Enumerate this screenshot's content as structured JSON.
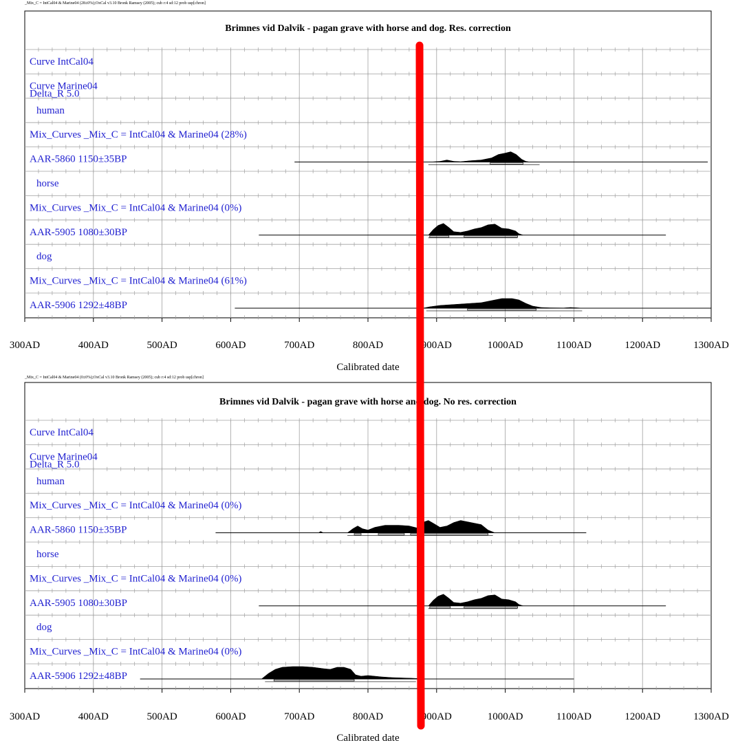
{
  "colors": {
    "label": "#1f1fd0",
    "grid": "#a0a0a0",
    "distribution": "#000000",
    "marker": "#ff0000"
  },
  "x_tick_labels": [
    "300AD",
    "400AD",
    "500AD",
    "600AD",
    "700AD",
    "800AD",
    "900AD",
    "1000AD",
    "1100AD",
    "1200AD",
    "1300AD"
  ],
  "xlabel": "Calibrated date",
  "chart_data": [
    {
      "type": "area",
      "meta": "_Mix_C = IntCal04 & Marine04 (28±0%);OxCal v3.10 Bronk Ramsey (2005); cub r:4 sd:12 prob usp[chron]",
      "title": "Brimnes vid Dalvik - pagan grave with horse and dog. Res. correction",
      "xlabel": "Calibrated date",
      "xlim": [
        300,
        1300
      ],
      "rows": [
        {
          "label": "Curve IntCal04"
        },
        {
          "label": "Curve Marine04",
          "sublabel": "Delta_R 5.0"
        },
        {
          "label": "human"
        },
        {
          "label": "Mix_Curves _Mix_C = IntCal04 & Marine04 (28%)"
        },
        {
          "label": "AAR-5860  1150±35BP",
          "range": [
            693,
            1295
          ],
          "dist": [
            [
              890,
              0
            ],
            [
              905,
              1
            ],
            [
              915,
              3
            ],
            [
              925,
              1
            ],
            [
              935,
              0.5
            ],
            [
              950,
              2
            ],
            [
              965,
              3
            ],
            [
              980,
              6
            ],
            [
              990,
              11
            ],
            [
              1000,
              13
            ],
            [
              1008,
              15
            ],
            [
              1016,
              11
            ],
            [
              1024,
              4
            ],
            [
              1030,
              1
            ],
            [
              1036,
              0
            ]
          ],
          "hpd68": [
            [
              978,
              1026
            ]
          ],
          "hpd95": [
            [
              888,
              1050
            ]
          ]
        },
        {
          "label": "horse"
        },
        {
          "label": "Mix_Curves _Mix_C = IntCal04 & Marine04 (0%)"
        },
        {
          "label": "AAR-5905  1080±30BP",
          "range": [
            641,
            1234
          ],
          "dist": [
            [
              888,
              0
            ],
            [
              895,
              8
            ],
            [
              902,
              14
            ],
            [
              910,
              17
            ],
            [
              918,
              11
            ],
            [
              925,
              5
            ],
            [
              935,
              4
            ],
            [
              945,
              6
            ],
            [
              955,
              9
            ],
            [
              965,
              11
            ],
            [
              975,
              15
            ],
            [
              985,
              16
            ],
            [
              995,
              10
            ],
            [
              1005,
              9
            ],
            [
              1015,
              6
            ],
            [
              1020,
              2
            ],
            [
              1026,
              0
            ]
          ],
          "hpd68": [
            [
              890,
              918
            ],
            [
              940,
              1018
            ]
          ],
          "hpd95": [
            [
              888,
              1018
            ]
          ]
        },
        {
          "label": "dog"
        },
        {
          "label": "Mix_Curves _Mix_C = IntCal04 & Marine04 (61%)"
        },
        {
          "label": "AAR-5906  1292±48BP",
          "range": [
            606,
            1300
          ],
          "dist": [
            [
              880,
              0
            ],
            [
              890,
              2
            ],
            [
              905,
              4
            ],
            [
              920,
              5
            ],
            [
              935,
              6
            ],
            [
              950,
              7
            ],
            [
              965,
              8
            ],
            [
              980,
              11
            ],
            [
              995,
              14
            ],
            [
              1010,
              14
            ],
            [
              1020,
              12
            ],
            [
              1030,
              7
            ],
            [
              1040,
              3
            ],
            [
              1052,
              1
            ],
            [
              1065,
              0.5
            ],
            [
              1085,
              0.3
            ],
            [
              1095,
              1
            ],
            [
              1105,
              0.5
            ],
            [
              1112,
              0
            ]
          ],
          "hpd68": [
            [
              945,
              1045
            ]
          ],
          "hpd95": [
            [
              885,
              1112
            ]
          ]
        }
      ]
    },
    {
      "type": "area",
      "meta": "_Mix_C = IntCal04 & Marine04 (0±0%);OxCal v3.10 Bronk Ramsey (2005); cub r:4 sd:12 prob usp[chron]",
      "title": "Brimnes vid Dalvik - pagan grave with horse and dog. No res. correction",
      "xlabel": "Calibrated date",
      "xlim": [
        300,
        1300
      ],
      "rows": [
        {
          "label": "Curve IntCal04"
        },
        {
          "label": "Curve Marine04",
          "sublabel": "Delta_R 5.0"
        },
        {
          "label": "human"
        },
        {
          "label": "Mix_Curves _Mix_C = IntCal04 & Marine04 (0%)"
        },
        {
          "label": "AAR-5860  1150±35BP",
          "range": [
            578,
            1118
          ],
          "dist": [
            [
              728,
              0
            ],
            [
              731,
              2
            ],
            [
              735,
              0
            ],
            [
              770,
              0
            ],
            [
              778,
              6
            ],
            [
              785,
              10
            ],
            [
              792,
              6
            ],
            [
              800,
              4
            ],
            [
              810,
              8
            ],
            [
              825,
              11
            ],
            [
              845,
              11
            ],
            [
              860,
              10
            ],
            [
              872,
              7
            ],
            [
              882,
              16
            ],
            [
              888,
              18
            ],
            [
              895,
              14
            ],
            [
              905,
              8
            ],
            [
              915,
              10
            ],
            [
              925,
              15
            ],
            [
              935,
              18
            ],
            [
              945,
              16
            ],
            [
              955,
              14
            ],
            [
              965,
              12
            ],
            [
              975,
              4
            ],
            [
              985,
              0
            ]
          ],
          "hpd68": [
            [
              780,
              790
            ],
            [
              815,
              853
            ],
            [
              862,
              975
            ]
          ],
          "hpd95": [
            [
              770,
              982
            ]
          ]
        },
        {
          "label": "horse"
        },
        {
          "label": "Mix_Curves _Mix_C = IntCal04 & Marine04 (0%)"
        },
        {
          "label": "AAR-5905  1080±30BP",
          "range": [
            641,
            1234
          ],
          "dist": [
            [
              888,
              0
            ],
            [
              895,
              8
            ],
            [
              902,
              14
            ],
            [
              910,
              17
            ],
            [
              918,
              11
            ],
            [
              925,
              5
            ],
            [
              935,
              4
            ],
            [
              945,
              6
            ],
            [
              955,
              9
            ],
            [
              965,
              11
            ],
            [
              975,
              15
            ],
            [
              985,
              16
            ],
            [
              995,
              10
            ],
            [
              1005,
              9
            ],
            [
              1015,
              6
            ],
            [
              1020,
              2
            ],
            [
              1026,
              0
            ]
          ],
          "hpd68": [
            [
              890,
              920
            ],
            [
              940,
              1018
            ]
          ],
          "hpd95": [
            [
              888,
              1018
            ]
          ]
        },
        {
          "label": "dog"
        },
        {
          "label": "Mix_Curves _Mix_C = IntCal04 & Marine04 (0%)"
        },
        {
          "label": "AAR-5906  1292±48BP",
          "range": [
            468,
            1100
          ],
          "dist": [
            [
              645,
              0
            ],
            [
              655,
              8
            ],
            [
              665,
              14
            ],
            [
              675,
              17
            ],
            [
              690,
              18
            ],
            [
              705,
              18
            ],
            [
              720,
              17
            ],
            [
              735,
              15
            ],
            [
              745,
              14
            ],
            [
              755,
              17
            ],
            [
              765,
              17
            ],
            [
              775,
              14
            ],
            [
              782,
              6
            ],
            [
              790,
              4
            ],
            [
              800,
              5
            ],
            [
              810,
              4
            ],
            [
              820,
              3
            ],
            [
              835,
              2
            ],
            [
              850,
              1.5
            ],
            [
              865,
              1
            ],
            [
              875,
              0.5
            ],
            [
              882,
              0
            ]
          ],
          "hpd68": [
            [
              663,
              780
            ]
          ],
          "hpd95": [
            [
              650,
              870
            ]
          ]
        }
      ]
    }
  ]
}
